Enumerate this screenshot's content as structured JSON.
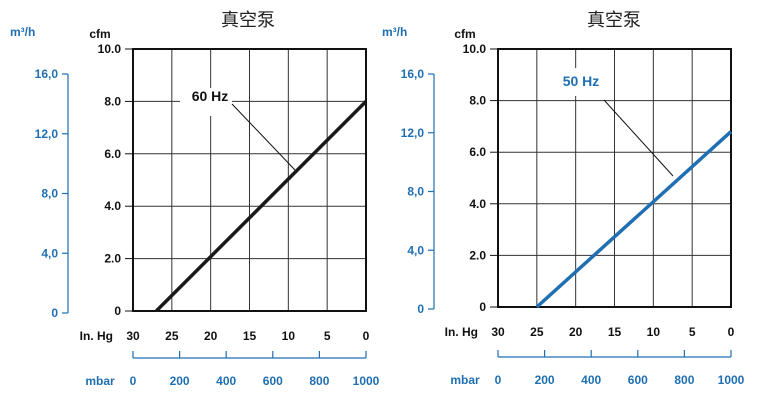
{
  "colors": {
    "left_curve": "#1a1a1a",
    "right_curve": "#1f6fb2",
    "secondary_axis": "#1f6fb2"
  },
  "chart_data": [
    {
      "type": "line",
      "title": "真空泵",
      "y_unit_primary": "cfm",
      "y_unit_secondary": "m³/h",
      "x_unit_primary": "In. Hg",
      "x_unit_secondary": "mbar",
      "x_ticks": [
        "30",
        "25",
        "20",
        "15",
        "10",
        "5",
        "0"
      ],
      "x_ticks_mbar": [
        "0",
        "200",
        "400",
        "600",
        "800",
        "1000"
      ],
      "y_ticks": [
        "0",
        "2.0",
        "4.0",
        "6.0",
        "8.0",
        "10.0"
      ],
      "y_ticks_m3h": [
        "0",
        "4,0",
        "8,0",
        "12,0",
        "16,0"
      ],
      "xlim": [
        30,
        0
      ],
      "ylim": [
        0,
        10
      ],
      "grid": true,
      "series": [
        {
          "name": "60 Hz",
          "x": [
            27,
            0
          ],
          "y": [
            0,
            8.0
          ]
        }
      ]
    },
    {
      "type": "line",
      "title": "真空泵",
      "y_unit_primary": "cfm",
      "y_unit_secondary": "m³/h",
      "x_unit_primary": "In. Hg",
      "x_unit_secondary": "mbar",
      "x_ticks": [
        "30",
        "25",
        "20",
        "15",
        "10",
        "5",
        "0"
      ],
      "x_ticks_mbar": [
        "0",
        "200",
        "400",
        "600",
        "800",
        "1000"
      ],
      "y_ticks": [
        "0",
        "2.0",
        "4.0",
        "6.0",
        "8.0",
        "10.0"
      ],
      "y_ticks_m3h": [
        "0",
        "4,0",
        "8,0",
        "12,0",
        "16,0"
      ],
      "xlim": [
        30,
        0
      ],
      "ylim": [
        0,
        10
      ],
      "grid": true,
      "series": [
        {
          "name": "50 Hz",
          "x": [
            25,
            0
          ],
          "y": [
            0,
            6.8
          ]
        }
      ]
    }
  ]
}
